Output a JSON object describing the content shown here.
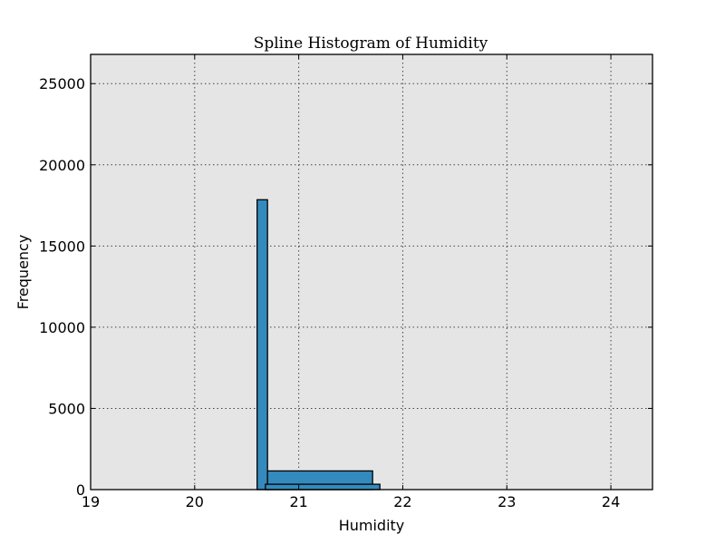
{
  "chart_data": {
    "type": "bar",
    "title": "Spline Histogram of Humidity",
    "xlabel": "Humidity",
    "ylabel": "Frequency",
    "xlim": [
      19,
      24.4
    ],
    "ylim": [
      0,
      26800
    ],
    "xticks": [
      19,
      20,
      21,
      22,
      23,
      24
    ],
    "yticks": [
      0,
      5000,
      10000,
      15000,
      20000,
      25000
    ],
    "grid": true,
    "bars": [
      {
        "x0": 20.6,
        "x1": 20.7,
        "value": 17850
      },
      {
        "x0": 20.7,
        "x1": 21.71,
        "value": 1150
      },
      {
        "x0": 20.68,
        "x1": 21.78,
        "value": 330
      }
    ],
    "colors": {
      "bar": "#348abd",
      "plot_bg": "#e5e5e5"
    }
  }
}
